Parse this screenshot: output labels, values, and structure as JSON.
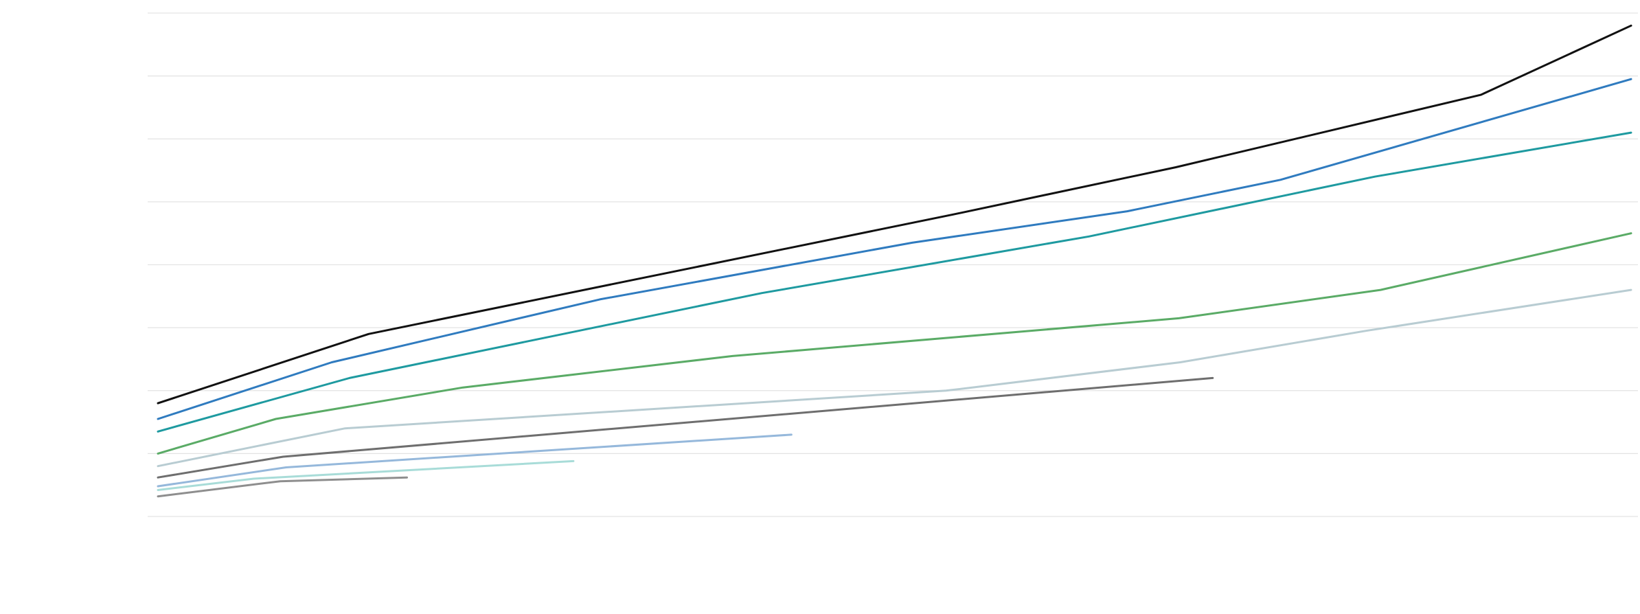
{
  "chart_data": {
    "type": "line",
    "title": "",
    "xlabel": "",
    "ylabel": "",
    "grid": true,
    "legend": "none",
    "xlim": [
      0,
      1000
    ],
    "ylim": [
      0,
      8
    ],
    "yticks": [
      0,
      1,
      2,
      3,
      4,
      5,
      6,
      7,
      8
    ],
    "series": [
      {
        "color": "#111111",
        "x": [
          0,
          143,
          540,
          691,
          898,
          1000
        ],
        "y": [
          1.8,
          2.9,
          4.8,
          5.55,
          6.7,
          7.8
        ]
      },
      {
        "color": "#2f7bbf",
        "x": [
          0,
          118,
          300,
          512,
          658,
          762,
          1000
        ],
        "y": [
          1.55,
          2.45,
          3.45,
          4.35,
          4.85,
          5.35,
          6.95
        ]
      },
      {
        "color": "#1e9aa0",
        "x": [
          0,
          130,
          410,
          632,
          826,
          1000
        ],
        "y": [
          1.35,
          2.2,
          3.55,
          4.45,
          5.4,
          6.1
        ]
      },
      {
        "color": "#5aab66",
        "x": [
          0,
          80,
          207,
          390,
          693,
          830,
          1000
        ],
        "y": [
          1.0,
          1.55,
          2.05,
          2.55,
          3.15,
          3.6,
          4.5
        ]
      },
      {
        "color": "#b8ccd2",
        "x": [
          0,
          127,
          535,
          694,
          820,
          1000
        ],
        "y": [
          0.8,
          1.4,
          2.0,
          2.45,
          2.95,
          3.6
        ]
      },
      {
        "color": "#6e6e6e",
        "x": [
          0,
          85,
          716
        ],
        "y": [
          0.62,
          0.95,
          2.2
        ]
      },
      {
        "color": "#95b8db",
        "x": [
          0,
          87,
          430
        ],
        "y": [
          0.48,
          0.78,
          1.3
        ]
      },
      {
        "color": "#a8dcd8",
        "x": [
          0,
          65,
          282
        ],
        "y": [
          0.42,
          0.6,
          0.88
        ]
      },
      {
        "color": "#8e8e8e",
        "x": [
          0,
          83,
          169
        ],
        "y": [
          0.32,
          0.56,
          0.62
        ]
      }
    ]
  }
}
